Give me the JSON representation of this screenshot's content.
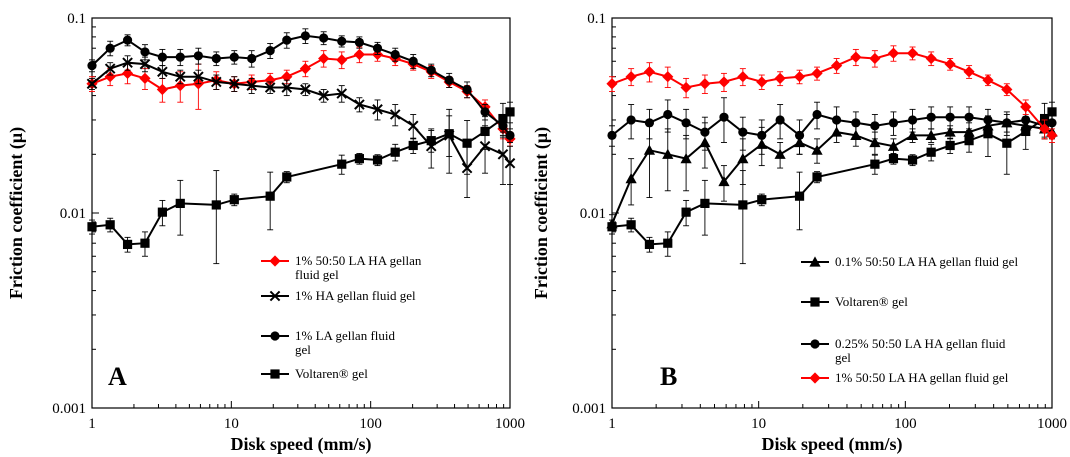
{
  "chart_data": [
    {
      "type": "line",
      "panel_label": "A",
      "xlabel": "Disk speed (mm/s)",
      "ylabel": "Friction coefficient (μ)",
      "xscale": "log",
      "yscale": "log",
      "xlim": [
        1,
        1000
      ],
      "ylim": [
        0.001,
        0.1
      ],
      "x_ticks": [
        "1",
        "10",
        "100",
        "1000"
      ],
      "y_ticks": [
        "0.001",
        "0.01",
        "0.1"
      ],
      "legend_position": "bottom-right",
      "series": [
        {
          "name": "1% 50:50 LA HA gellan fluid gel",
          "color": "#ff0000",
          "marker": "diamond",
          "x": [
            1,
            1.35,
            1.8,
            2.4,
            3.2,
            4.3,
            5.8,
            7.8,
            10.5,
            14,
            19,
            25,
            34,
            46,
            62,
            83,
            112,
            150,
            202,
            272,
            366,
            492,
            662,
            890,
            1000
          ],
          "y": [
            0.046,
            0.05,
            0.052,
            0.049,
            0.043,
            0.045,
            0.046,
            0.048,
            0.046,
            0.047,
            0.048,
            0.05,
            0.055,
            0.062,
            0.061,
            0.065,
            0.065,
            0.062,
            0.058,
            0.053,
            0.047,
            0.042,
            0.035,
            0.027,
            0.024
          ],
          "error": [
            0.004,
            0.005,
            0.006,
            0.006,
            0.006,
            0.008,
            0.012,
            0.005,
            0.004,
            0.004,
            0.004,
            0.004,
            0.005,
            0.006,
            0.006,
            0.006,
            0.005,
            0.005,
            0.004,
            0.004,
            0.003,
            0.003,
            0.003,
            0.003,
            0.002
          ]
        },
        {
          "name": "1% HA gellan fluid gel",
          "color": "#000000",
          "marker": "x",
          "x": [
            1,
            1.35,
            1.8,
            2.4,
            3.2,
            4.3,
            5.8,
            7.8,
            10.5,
            14,
            19,
            25,
            34,
            46,
            62,
            83,
            112,
            150,
            202,
            272,
            366,
            492,
            662,
            890,
            1000
          ],
          "y": [
            0.046,
            0.055,
            0.059,
            0.058,
            0.053,
            0.05,
            0.05,
            0.047,
            0.046,
            0.045,
            0.044,
            0.044,
            0.043,
            0.04,
            0.041,
            0.036,
            0.034,
            0.032,
            0.028,
            0.022,
            0.025,
            0.017,
            0.022,
            0.02,
            0.018
          ],
          "error": [
            0.003,
            0.004,
            0.005,
            0.005,
            0.004,
            0.004,
            0.004,
            0.004,
            0.004,
            0.004,
            0.003,
            0.004,
            0.003,
            0.003,
            0.004,
            0.003,
            0.004,
            0.004,
            0.004,
            0.005,
            0.009,
            0.005,
            0.006,
            0.006,
            0.004
          ]
        },
        {
          "name": "1% LA  gellan fluid gel",
          "color": "#000000",
          "marker": "circle",
          "x": [
            1,
            1.35,
            1.8,
            2.4,
            3.2,
            4.3,
            5.8,
            7.8,
            10.5,
            14,
            19,
            25,
            34,
            46,
            62,
            83,
            112,
            150,
            202,
            272,
            366,
            492,
            662,
            890,
            1000
          ],
          "y": [
            0.057,
            0.07,
            0.077,
            0.067,
            0.063,
            0.063,
            0.064,
            0.062,
            0.063,
            0.062,
            0.068,
            0.077,
            0.081,
            0.079,
            0.076,
            0.075,
            0.07,
            0.065,
            0.06,
            0.054,
            0.048,
            0.043,
            0.033,
            0.028,
            0.025
          ],
          "error": [
            0.004,
            0.006,
            0.005,
            0.006,
            0.006,
            0.006,
            0.006,
            0.005,
            0.005,
            0.006,
            0.006,
            0.007,
            0.007,
            0.006,
            0.005,
            0.005,
            0.005,
            0.005,
            0.005,
            0.004,
            0.004,
            0.004,
            0.003,
            0.003,
            0.002
          ]
        },
        {
          "name": "Voltaren® gel",
          "color": "#000000",
          "marker": "square",
          "x": [
            1,
            1.35,
            1.8,
            2.4,
            3.2,
            4.3,
            7.8,
            10.5,
            19,
            25,
            62,
            83,
            112,
            150,
            202,
            272,
            366,
            492,
            662,
            890,
            1000
          ],
          "y": [
            0.0085,
            0.0087,
            0.0069,
            0.007,
            0.0101,
            0.0112,
            0.011,
            0.0117,
            0.0122,
            0.0153,
            0.0178,
            0.019,
            0.0187,
            0.0205,
            0.0222,
            0.0235,
            0.0255,
            0.0228,
            0.0262,
            0.0305,
            0.033
          ],
          "error": [
            0.0007,
            0.0007,
            0.0006,
            0.001,
            0.0015,
            0.0035,
            0.0055,
            0.0008,
            0.004,
            0.001,
            0.002,
            0.0012,
            0.0012,
            0.002,
            0.002,
            0.003,
            0.006,
            0.007,
            0.005,
            0.006,
            0.004
          ]
        }
      ]
    },
    {
      "type": "line",
      "panel_label": "B",
      "xlabel": "Disk speed (mm/s)",
      "ylabel": "Friction coefficient (μ)",
      "xscale": "log",
      "yscale": "log",
      "xlim": [
        1,
        1000
      ],
      "ylim": [
        0.001,
        0.1
      ],
      "x_ticks": [
        "1",
        "10",
        "100",
        "1000"
      ],
      "y_ticks": [
        "0.001",
        "0.01",
        "0.1"
      ],
      "legend_position": "bottom-right",
      "series": [
        {
          "name": "0.1% 50:50 LA HA gellan fluid gel",
          "color": "#000000",
          "marker": "triangle",
          "x": [
            1,
            1.35,
            1.8,
            2.4,
            3.2,
            4.3,
            5.8,
            7.8,
            10.5,
            14,
            19,
            25,
            34,
            46,
            62,
            83,
            112,
            150,
            202,
            272,
            366,
            492,
            662,
            890,
            1000
          ],
          "y": [
            0.0088,
            0.015,
            0.021,
            0.02,
            0.019,
            0.023,
            0.0145,
            0.019,
            0.0225,
            0.02,
            0.023,
            0.021,
            0.026,
            0.025,
            0.023,
            0.022,
            0.025,
            0.025,
            0.026,
            0.026,
            0.028,
            0.029,
            0.028,
            0.027,
            0.026
          ],
          "error": [
            0.001,
            0.004,
            0.009,
            0.007,
            0.006,
            0.006,
            0.003,
            0.005,
            0.005,
            0.003,
            0.003,
            0.003,
            0.003,
            0.003,
            0.003,
            0.002,
            0.002,
            0.002,
            0.002,
            0.003,
            0.003,
            0.003,
            0.003,
            0.003,
            0.002
          ]
        },
        {
          "name": "Voltaren® gel",
          "color": "#000000",
          "marker": "square",
          "x": [
            1,
            1.35,
            1.8,
            2.4,
            3.2,
            4.3,
            7.8,
            10.5,
            19,
            25,
            62,
            83,
            112,
            150,
            202,
            272,
            366,
            492,
            662,
            890,
            1000
          ],
          "y": [
            0.0085,
            0.0087,
            0.0069,
            0.007,
            0.0101,
            0.0112,
            0.011,
            0.0117,
            0.0122,
            0.0153,
            0.0178,
            0.019,
            0.0187,
            0.0205,
            0.0222,
            0.0235,
            0.0255,
            0.0228,
            0.0262,
            0.0305,
            0.033
          ],
          "error": [
            0.0007,
            0.0007,
            0.0006,
            0.001,
            0.0015,
            0.0035,
            0.0055,
            0.0008,
            0.004,
            0.001,
            0.002,
            0.0012,
            0.0012,
            0.002,
            0.002,
            0.003,
            0.006,
            0.007,
            0.005,
            0.006,
            0.004
          ]
        },
        {
          "name": "0.25% 50:50 LA HA gellan fluid gel",
          "color": "#000000",
          "marker": "circle",
          "x": [
            1,
            1.35,
            1.8,
            2.4,
            3.2,
            4.3,
            5.8,
            7.8,
            10.5,
            14,
            19,
            25,
            34,
            46,
            62,
            83,
            112,
            150,
            202,
            272,
            366,
            492,
            662,
            890,
            1000
          ],
          "y": [
            0.025,
            0.03,
            0.029,
            0.032,
            0.029,
            0.026,
            0.031,
            0.026,
            0.025,
            0.03,
            0.025,
            0.032,
            0.03,
            0.029,
            0.028,
            0.029,
            0.03,
            0.031,
            0.031,
            0.031,
            0.03,
            0.029,
            0.03,
            0.028,
            0.029
          ],
          "error": [
            0.003,
            0.006,
            0.005,
            0.006,
            0.005,
            0.005,
            0.008,
            0.005,
            0.005,
            0.006,
            0.005,
            0.005,
            0.005,
            0.004,
            0.004,
            0.004,
            0.004,
            0.004,
            0.004,
            0.004,
            0.004,
            0.004,
            0.004,
            0.004,
            0.003
          ]
        },
        {
          "name": "1% 50:50 LA HA gellan fluid gel",
          "color": "#ff0000",
          "marker": "diamond",
          "x": [
            1,
            1.35,
            1.8,
            2.4,
            3.2,
            4.3,
            5.8,
            7.8,
            10.5,
            14,
            19,
            25,
            34,
            46,
            62,
            83,
            112,
            150,
            202,
            272,
            366,
            492,
            662,
            890,
            1000
          ],
          "y": [
            0.046,
            0.05,
            0.053,
            0.05,
            0.044,
            0.046,
            0.047,
            0.05,
            0.047,
            0.049,
            0.05,
            0.052,
            0.057,
            0.063,
            0.062,
            0.066,
            0.066,
            0.062,
            0.058,
            0.053,
            0.048,
            0.043,
            0.035,
            0.027,
            0.025
          ],
          "error": [
            0.004,
            0.005,
            0.006,
            0.006,
            0.005,
            0.005,
            0.005,
            0.005,
            0.004,
            0.004,
            0.004,
            0.004,
            0.005,
            0.006,
            0.006,
            0.006,
            0.005,
            0.005,
            0.004,
            0.004,
            0.003,
            0.003,
            0.003,
            0.003,
            0.002
          ]
        }
      ]
    }
  ]
}
